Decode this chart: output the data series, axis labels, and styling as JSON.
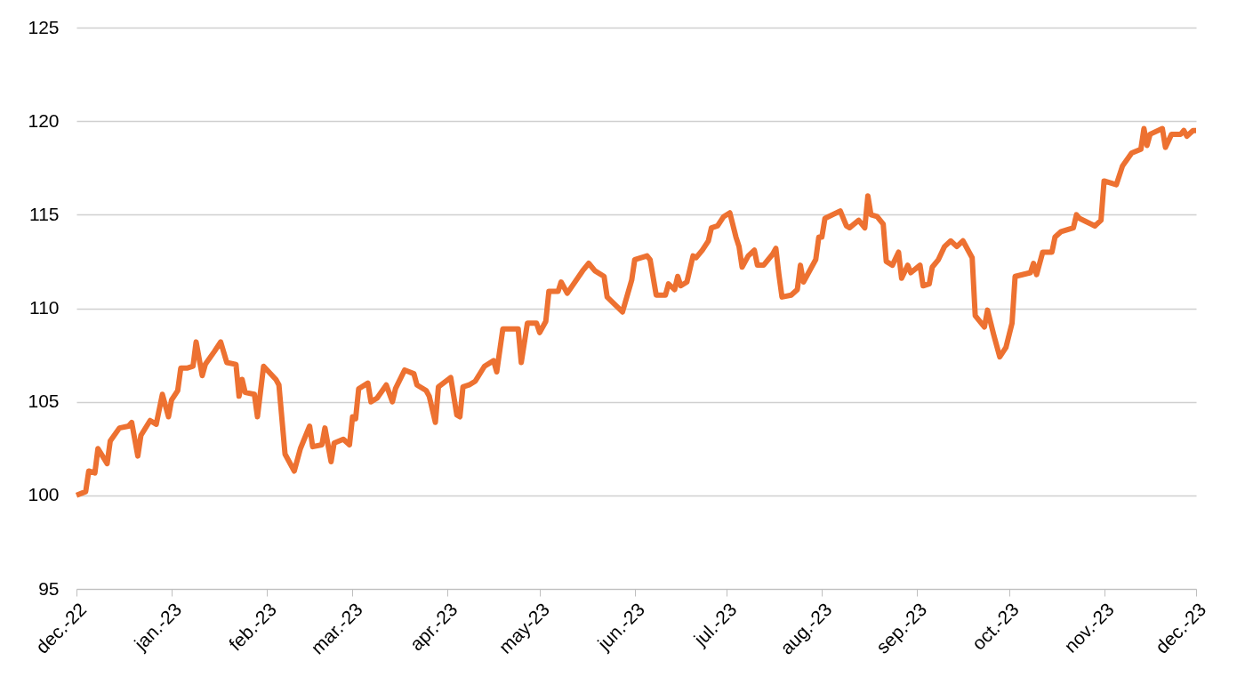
{
  "chart_data": {
    "type": "line",
    "x": [
      "2022-12-01",
      "2022-12-04",
      "2022-12-05",
      "2022-12-07",
      "2022-12-08",
      "2022-12-11",
      "2022-12-12",
      "2022-12-15",
      "2022-12-18",
      "2022-12-19",
      "2022-12-21",
      "2022-12-22",
      "2022-12-25",
      "2022-12-27",
      "2022-12-29",
      "2022-12-31",
      "2023-01-01",
      "2023-01-03",
      "2023-01-04",
      "2023-01-06",
      "2023-01-08",
      "2023-01-09",
      "2023-01-11",
      "2023-01-12",
      "2023-01-15",
      "2023-01-17",
      "2023-01-19",
      "2023-01-22",
      "2023-01-23",
      "2023-01-24",
      "2023-01-25",
      "2023-01-28",
      "2023-01-29",
      "2023-01-31",
      "2023-02-04",
      "2023-02-05",
      "2023-02-07",
      "2023-02-10",
      "2023-02-12",
      "2023-02-15",
      "2023-02-16",
      "2023-02-19",
      "2023-02-20",
      "2023-02-22",
      "2023-02-23",
      "2023-02-26",
      "2023-02-28",
      "2023-03-01",
      "2023-03-02",
      "2023-03-03",
      "2023-03-06",
      "2023-03-07",
      "2023-03-09",
      "2023-03-12",
      "2023-03-14",
      "2023-03-15",
      "2023-03-18",
      "2023-03-21",
      "2023-03-22",
      "2023-03-25",
      "2023-03-26",
      "2023-03-28",
      "2023-03-29",
      "2023-04-02",
      "2023-04-04",
      "2023-04-05",
      "2023-04-06",
      "2023-04-08",
      "2023-04-10",
      "2023-04-13",
      "2023-04-16",
      "2023-04-17",
      "2023-04-19",
      "2023-04-24",
      "2023-04-25",
      "2023-04-27",
      "2023-04-30",
      "2023-05-01",
      "2023-05-03",
      "2023-05-04",
      "2023-05-07",
      "2023-05-08",
      "2023-05-10",
      "2023-05-15",
      "2023-05-17",
      "2023-05-19",
      "2023-05-22",
      "2023-05-23",
      "2023-05-28",
      "2023-05-31",
      "2023-06-01",
      "2023-06-05",
      "2023-06-06",
      "2023-06-08",
      "2023-06-11",
      "2023-06-12",
      "2023-06-14",
      "2023-06-15",
      "2023-06-16",
      "2023-06-18",
      "2023-06-20",
      "2023-06-21",
      "2023-06-23",
      "2023-06-25",
      "2023-06-26",
      "2023-06-28",
      "2023-06-30",
      "2023-07-02",
      "2023-07-04",
      "2023-07-05",
      "2023-07-06",
      "2023-07-08",
      "2023-07-10",
      "2023-07-11",
      "2023-07-13",
      "2023-07-16",
      "2023-07-17",
      "2023-07-18",
      "2023-07-19",
      "2023-07-22",
      "2023-07-24",
      "2023-07-25",
      "2023-07-26",
      "2023-07-30",
      "2023-07-31",
      "2023-08-01",
      "2023-08-02",
      "2023-08-07",
      "2023-08-09",
      "2023-08-10",
      "2023-08-13",
      "2023-08-15",
      "2023-08-16",
      "2023-08-17",
      "2023-08-19",
      "2023-08-21",
      "2023-08-22",
      "2023-08-24",
      "2023-08-26",
      "2023-08-27",
      "2023-08-29",
      "2023-08-30",
      "2023-09-02",
      "2023-09-03",
      "2023-09-05",
      "2023-09-06",
      "2023-09-08",
      "2023-09-10",
      "2023-09-12",
      "2023-09-14",
      "2023-09-16",
      "2023-09-19",
      "2023-09-20",
      "2023-09-23",
      "2023-09-24",
      "2023-09-26",
      "2023-09-28",
      "2023-09-30",
      "2023-10-02",
      "2023-10-03",
      "2023-10-08",
      "2023-10-09",
      "2023-10-10",
      "2023-10-12",
      "2023-10-15",
      "2023-10-16",
      "2023-10-18",
      "2023-10-22",
      "2023-10-23",
      "2023-10-24",
      "2023-10-29",
      "2023-10-31",
      "2023-11-01",
      "2023-11-05",
      "2023-11-07",
      "2023-11-10",
      "2023-11-13",
      "2023-11-14",
      "2023-11-15",
      "2023-11-16",
      "2023-11-20",
      "2023-11-21",
      "2023-11-23",
      "2023-11-26",
      "2023-11-27",
      "2023-11-28",
      "2023-11-30",
      "2023-12-01"
    ],
    "series": [
      {
        "color": "#ed7131",
        "values": [
          100.0,
          100.2,
          101.3,
          101.2,
          102.5,
          101.7,
          102.9,
          103.6,
          103.7,
          103.9,
          102.1,
          103.2,
          104.0,
          103.8,
          105.4,
          104.2,
          105.1,
          105.6,
          106.8,
          106.8,
          106.9,
          108.2,
          106.4,
          107.0,
          107.7,
          108.2,
          107.1,
          107.0,
          105.3,
          106.2,
          105.5,
          105.4,
          104.2,
          106.9,
          106.2,
          105.9,
          102.2,
          101.3,
          102.5,
          103.7,
          102.6,
          102.7,
          103.6,
          101.8,
          102.8,
          103.0,
          102.7,
          104.2,
          104.1,
          105.7,
          106.0,
          105.0,
          105.2,
          105.9,
          105.0,
          105.7,
          106.7,
          106.5,
          105.9,
          105.6,
          105.3,
          103.9,
          105.8,
          106.3,
          104.3,
          104.2,
          105.8,
          105.9,
          106.1,
          106.9,
          107.2,
          106.6,
          108.9,
          108.9,
          107.1,
          109.2,
          109.2,
          108.7,
          109.3,
          110.9,
          110.9,
          111.4,
          110.8,
          112.0,
          112.4,
          112.0,
          111.7,
          110.6,
          109.8,
          111.5,
          112.6,
          112.8,
          112.6,
          110.7,
          110.7,
          111.3,
          111.0,
          111.7,
          111.2,
          111.4,
          112.8,
          112.7,
          113.1,
          113.6,
          114.3,
          114.4,
          114.9,
          115.1,
          113.8,
          113.3,
          112.2,
          112.8,
          113.1,
          112.3,
          112.3,
          112.9,
          113.2,
          111.8,
          110.6,
          110.7,
          111.0,
          112.3,
          111.4,
          112.6,
          113.8,
          113.8,
          114.8,
          115.2,
          114.4,
          114.3,
          114.7,
          114.3,
          116.0,
          115.0,
          114.9,
          114.5,
          112.5,
          112.3,
          113.0,
          111.6,
          112.3,
          111.9,
          112.3,
          111.2,
          111.3,
          112.2,
          112.6,
          113.3,
          113.6,
          113.3,
          113.6,
          112.7,
          109.6,
          109.0,
          109.9,
          108.6,
          107.4,
          107.9,
          109.2,
          111.7,
          111.9,
          112.4,
          111.8,
          113.0,
          113.0,
          113.8,
          114.1,
          114.3,
          115.0,
          114.8,
          114.4,
          114.7,
          116.8,
          116.6,
          117.6,
          118.3,
          118.5,
          119.6,
          118.7,
          119.3,
          119.6,
          118.6,
          119.3,
          119.3,
          119.5,
          119.2,
          119.5,
          119.5
        ]
      }
    ],
    "xlim": [
      "2022-12-01",
      "2023-12-01"
    ],
    "xticks": [
      {
        "value": "2022-12-01",
        "label": "dec.-22"
      },
      {
        "value": "2023-01-01",
        "label": "jan.-23"
      },
      {
        "value": "2023-02-01",
        "label": "feb.-23"
      },
      {
        "value": "2023-03-01",
        "label": "mar.-23"
      },
      {
        "value": "2023-04-01",
        "label": "apr.-23"
      },
      {
        "value": "2023-05-01",
        "label": "may-23"
      },
      {
        "value": "2023-06-01",
        "label": "jun.-23"
      },
      {
        "value": "2023-07-01",
        "label": "jul.-23"
      },
      {
        "value": "2023-08-01",
        "label": "aug.-23"
      },
      {
        "value": "2023-09-01",
        "label": "sep.-23"
      },
      {
        "value": "2023-10-01",
        "label": "oct.-23"
      },
      {
        "value": "2023-11-01",
        "label": "nov.-23"
      },
      {
        "value": "2023-12-01",
        "label": "dec.-23"
      }
    ],
    "ylim": [
      95,
      125
    ],
    "yticks": [
      95,
      100,
      105,
      110,
      115,
      120,
      125
    ],
    "grid": "y",
    "marker": "none",
    "line_style": "solid"
  }
}
